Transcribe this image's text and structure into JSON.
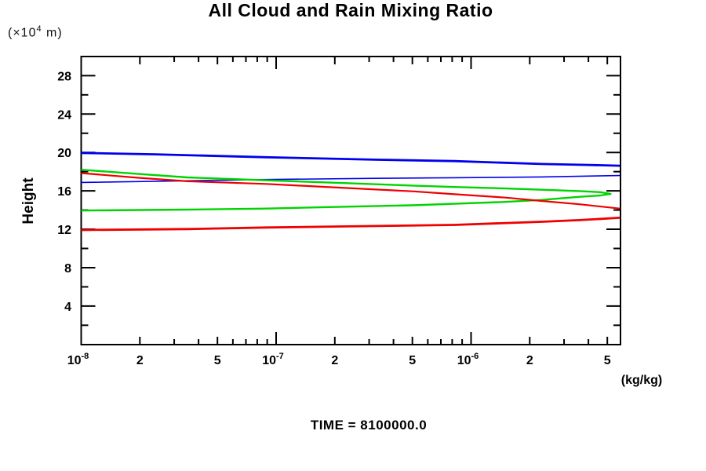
{
  "header": {
    "title": "All Cloud and Rain Mixing Ratio"
  },
  "unit_label": {
    "prefix": "(×10",
    "exp": "4",
    "suffix": " m)"
  },
  "footer": {
    "time_label": "TIME = 8100000.0"
  },
  "chart_data": {
    "type": "line",
    "title": "All Cloud and Rain Mixing Ratio",
    "xlabel": "(kg/kg)",
    "ylabel": "Height",
    "ylabel_unit": "(x10^4 m)",
    "x_scale": "log",
    "xlim": [
      1e-08,
      5.8e-06
    ],
    "ylim": [
      0,
      30
    ],
    "grid": false,
    "legend": "none",
    "ticks_style": "inward on all four sides",
    "y_major_ticks": [
      4,
      8,
      12,
      16,
      20,
      24,
      28
    ],
    "y_minor_ticks": [
      2,
      6,
      10,
      14,
      18,
      22,
      26
    ],
    "x_decades": [
      1e-08,
      1e-07,
      1e-06
    ],
    "x_minor_multipliers": [
      2,
      3,
      4,
      5,
      6,
      7,
      8,
      9
    ],
    "x_tick_labels": [
      {
        "value": 1e-08,
        "base": "10",
        "exp": "-8"
      },
      {
        "value": 2e-08,
        "text": "2"
      },
      {
        "value": 5e-08,
        "text": "5"
      },
      {
        "value": 1e-07,
        "base": "10",
        "exp": "-7"
      },
      {
        "value": 2e-07,
        "text": "2"
      },
      {
        "value": 5e-07,
        "text": "5"
      },
      {
        "value": 1e-06,
        "base": "10",
        "exp": "-6"
      },
      {
        "value": 2e-06,
        "text": "2"
      },
      {
        "value": 5e-06,
        "text": "5"
      }
    ],
    "colors": {
      "blue": "#0000ee",
      "green": "#00d400",
      "red": "#ee0000"
    },
    "series": [
      {
        "name": "blue-profile",
        "color": "blue",
        "widths": [
          2.8,
          1.6
        ],
        "branches": [
          [
            [
              1e-08,
              19.95
            ],
            [
              2.4e-08,
              19.8
            ],
            [
              8.9e-08,
              19.5
            ],
            [
              3.2e-07,
              19.25
            ],
            [
              8.2e-07,
              19.1
            ],
            [
              2.3e-06,
              18.8
            ],
            [
              4e-06,
              18.7
            ],
            [
              5.8e-06,
              18.62
            ]
          ],
          [
            [
              1e-08,
              16.88
            ],
            [
              3.5e-08,
              17.05
            ],
            [
              8.9e-08,
              17.18
            ],
            [
              3.2e-07,
              17.3
            ],
            [
              8.2e-07,
              17.37
            ],
            [
              2.3e-06,
              17.45
            ],
            [
              5.8e-06,
              17.6
            ]
          ]
        ]
      },
      {
        "name": "green-profile",
        "color": "green",
        "widths": [
          2.4
        ],
        "branches": [
          [
            [
              1e-08,
              18.2
            ],
            [
              2e-08,
              17.75
            ],
            [
              3.5e-08,
              17.4
            ],
            [
              8.9e-08,
              17.1
            ],
            [
              2.3e-07,
              16.8
            ],
            [
              5e-07,
              16.55
            ],
            [
              8.2e-07,
              16.4
            ],
            [
              1.5e-06,
              16.25
            ],
            [
              2.3e-06,
              16.12
            ],
            [
              3.6e-06,
              15.98
            ],
            [
              4.6e-06,
              15.86
            ],
            [
              5.2e-06,
              15.68
            ],
            [
              4.6e-06,
              15.52
            ],
            [
              3.6e-06,
              15.38
            ],
            [
              2.3e-06,
              15.05
            ],
            [
              1.5e-06,
              14.85
            ],
            [
              8.2e-07,
              14.65
            ],
            [
              5e-07,
              14.5
            ],
            [
              2.3e-07,
              14.35
            ],
            [
              8.9e-08,
              14.15
            ],
            [
              3.5e-08,
              14.05
            ],
            [
              1e-08,
              13.95
            ]
          ]
        ]
      },
      {
        "name": "red-profile",
        "color": "red",
        "widths": [
          2.2,
          2.8
        ],
        "branches": [
          [
            [
              1e-08,
              17.85
            ],
            [
              2e-08,
              17.35
            ],
            [
              3.5e-08,
              17.0
            ],
            [
              8.9e-08,
              16.72
            ],
            [
              2.3e-07,
              16.3
            ],
            [
              5e-07,
              15.95
            ],
            [
              8.2e-07,
              15.65
            ],
            [
              1.5e-06,
              15.3
            ],
            [
              2.3e-06,
              14.95
            ],
            [
              3.6e-06,
              14.6
            ],
            [
              5.8e-06,
              14.15
            ]
          ],
          [
            [
              1e-08,
              11.92
            ],
            [
              3.5e-08,
              12.02
            ],
            [
              8.9e-08,
              12.18
            ],
            [
              2.3e-07,
              12.3
            ],
            [
              8.2e-07,
              12.45
            ],
            [
              2.3e-06,
              12.78
            ],
            [
              3.6e-06,
              12.95
            ],
            [
              5.8e-06,
              13.2
            ]
          ]
        ]
      }
    ],
    "time_annotation": "TIME = 8100000.0"
  }
}
